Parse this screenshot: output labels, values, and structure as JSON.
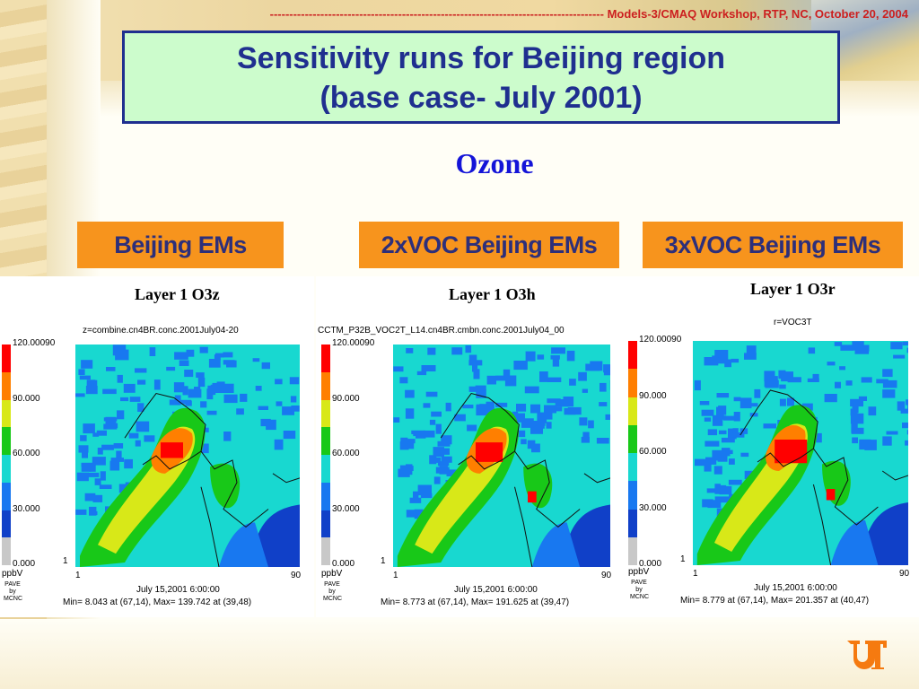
{
  "header": {
    "dashes": "--------------------------------------------------------------------------------------",
    "text": "Models-3/CMAQ Workshop, RTP, NC, October 20, 2004"
  },
  "title": {
    "line1": "Sensitivity runs for Beijing region",
    "line2": "(base case- July 2001)"
  },
  "subtitle": "Ozone",
  "panels": [
    {
      "label": "Beijing EMs",
      "layer_title": "Layer 1  O3z",
      "file": "z=combine.cn4BR.conc.2001July04-20",
      "cb_labels": [
        "120.00090",
        "90.000",
        "60.000",
        "30.000",
        "0.000"
      ],
      "x_start": "1",
      "x_end": "90",
      "y_start": "1",
      "units": "ppbV",
      "pave": "PAVE by MCNC",
      "date": "July 15,2001 6:00:00",
      "minmax": "Min=   8.043 at (67,14), Max= 139.742 at (39,48)"
    },
    {
      "label": "2xVOC Beijing EMs",
      "layer_title": "Layer 1  O3h",
      "file": "CCTM_P32B_VOC2T_L14.cn4BR.cmbn.conc.2001July04_00",
      "cb_labels": [
        "120.00090",
        "90.000",
        "60.000",
        "30.000",
        "0.000"
      ],
      "x_start": "1",
      "x_end": "90",
      "y_start": "1",
      "units": "ppbV",
      "pave": "PAVE by MCNC",
      "date": "July 15,2001 6:00:00",
      "minmax": "Min=   8.773 at (67,14), Max= 191.625 at (39,47)"
    },
    {
      "label": "3xVOC Beijing EMs",
      "layer_title": "Layer 1  O3r",
      "file": "r=VOC3T",
      "cb_labels": [
        "120.00090",
        "90.000",
        "60.000",
        "30.000",
        "0.000"
      ],
      "x_start": "1",
      "x_end": "90",
      "y_start": "1",
      "units": "ppbV",
      "pave": "PAVE by MCNC",
      "date": "July 15,2001 6:00:00",
      "minmax": "Min=   8.779 at (67,14), Max= 201.357 at (40,47)"
    }
  ],
  "colors": {
    "title_bg": "#ccfccc",
    "title_text": "#1f2f8f",
    "header_text": "#cc1f1f",
    "ozone_text": "#1414d8",
    "label_bg": "#f7941d",
    "label_text": "#2d2f7a",
    "colorbar": [
      "#ff0000",
      "#ff7f00",
      "#d8e818",
      "#18c818",
      "#18d8d0",
      "#1878f0",
      "#1040c8",
      "#c8c8c8"
    ]
  },
  "logo": "UT"
}
